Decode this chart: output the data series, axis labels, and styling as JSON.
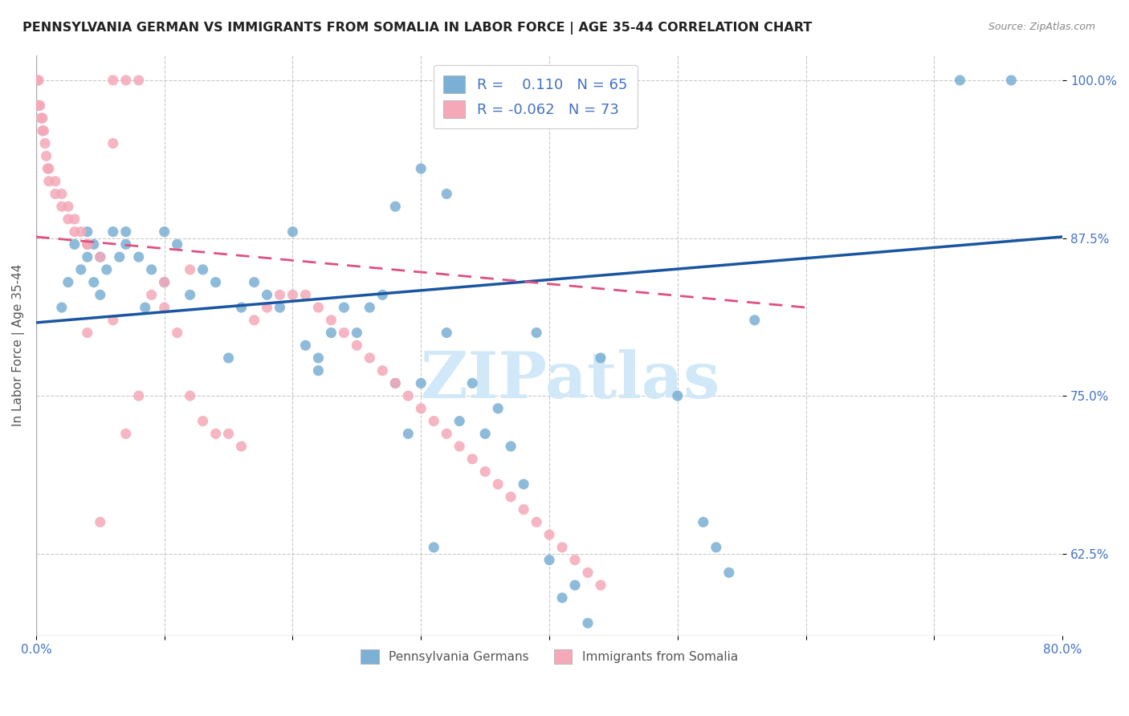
{
  "title": "PENNSYLVANIA GERMAN VS IMMIGRANTS FROM SOMALIA IN LABOR FORCE | AGE 35-44 CORRELATION CHART",
  "source": "Source: ZipAtlas.com",
  "ylabel": "In Labor Force | Age 35-44",
  "xlim": [
    0.0,
    0.8
  ],
  "ylim": [
    0.56,
    1.02
  ],
  "ytick_positions": [
    0.625,
    0.75,
    0.875,
    1.0
  ],
  "yticklabels": [
    "62.5%",
    "75.0%",
    "87.5%",
    "100.0%"
  ],
  "xtick_positions": [
    0.0,
    0.1,
    0.2,
    0.3,
    0.4,
    0.5,
    0.6,
    0.7,
    0.8
  ],
  "xticklabels": [
    "0.0%",
    "",
    "",
    "",
    "",
    "",
    "",
    "",
    "80.0%"
  ],
  "blue_color": "#7bafd4",
  "pink_color": "#f4a8b8",
  "blue_line_color": "#1a56a0",
  "pink_line_color": "#e05080",
  "legend_R_blue": " 0.110",
  "legend_N_blue": "65",
  "legend_R_pink": "-0.062",
  "legend_N_pink": "73",
  "watermark": "ZIPatlas",
  "watermark_color": "#d0e8f8",
  "title_color": "#222222",
  "axis_color": "#4472c4",
  "grid_color": "#bbbbbb",
  "blue_scatter_x": [
    0.02,
    0.025,
    0.03,
    0.035,
    0.04,
    0.04,
    0.045,
    0.045,
    0.05,
    0.05,
    0.055,
    0.06,
    0.065,
    0.07,
    0.07,
    0.08,
    0.085,
    0.09,
    0.1,
    0.1,
    0.11,
    0.12,
    0.13,
    0.14,
    0.15,
    0.16,
    0.17,
    0.18,
    0.19,
    0.2,
    0.21,
    0.22,
    0.22,
    0.23,
    0.24,
    0.25,
    0.26,
    0.27,
    0.28,
    0.29,
    0.3,
    0.31,
    0.32,
    0.33,
    0.34,
    0.35,
    0.36,
    0.37,
    0.38,
    0.39,
    0.4,
    0.41,
    0.42,
    0.43,
    0.44,
    0.5,
    0.52,
    0.53,
    0.54,
    0.56,
    0.72,
    0.76,
    0.3,
    0.32,
    0.28
  ],
  "blue_scatter_y": [
    0.82,
    0.84,
    0.87,
    0.85,
    0.88,
    0.86,
    0.87,
    0.84,
    0.86,
    0.83,
    0.85,
    0.88,
    0.86,
    0.88,
    0.87,
    0.86,
    0.82,
    0.85,
    0.88,
    0.84,
    0.87,
    0.83,
    0.85,
    0.84,
    0.78,
    0.82,
    0.84,
    0.83,
    0.82,
    0.88,
    0.79,
    0.77,
    0.78,
    0.8,
    0.82,
    0.8,
    0.82,
    0.83,
    0.76,
    0.72,
    0.76,
    0.63,
    0.8,
    0.73,
    0.76,
    0.72,
    0.74,
    0.71,
    0.68,
    0.8,
    0.62,
    0.59,
    0.6,
    0.57,
    0.78,
    0.75,
    0.65,
    0.63,
    0.61,
    0.81,
    1.0,
    1.0,
    0.93,
    0.91,
    0.9
  ],
  "pink_scatter_x": [
    0.001,
    0.001,
    0.002,
    0.002,
    0.003,
    0.004,
    0.005,
    0.005,
    0.006,
    0.007,
    0.008,
    0.009,
    0.01,
    0.01,
    0.015,
    0.015,
    0.02,
    0.02,
    0.025,
    0.025,
    0.03,
    0.03,
    0.035,
    0.04,
    0.04,
    0.05,
    0.06,
    0.06,
    0.07,
    0.08,
    0.09,
    0.1,
    0.11,
    0.12,
    0.13,
    0.14,
    0.15,
    0.16,
    0.17,
    0.18,
    0.19,
    0.2,
    0.21,
    0.22,
    0.23,
    0.24,
    0.25,
    0.26,
    0.27,
    0.28,
    0.29,
    0.3,
    0.31,
    0.32,
    0.33,
    0.34,
    0.35,
    0.36,
    0.37,
    0.38,
    0.39,
    0.4,
    0.41,
    0.42,
    0.43,
    0.44,
    0.1,
    0.12,
    0.08,
    0.07,
    0.06,
    0.05,
    0.04
  ],
  "pink_scatter_y": [
    0.98,
    1.0,
    0.98,
    1.0,
    0.98,
    0.97,
    0.97,
    0.96,
    0.96,
    0.95,
    0.94,
    0.93,
    0.93,
    0.92,
    0.92,
    0.91,
    0.91,
    0.9,
    0.9,
    0.89,
    0.89,
    0.88,
    0.88,
    0.87,
    0.87,
    0.86,
    0.95,
    1.0,
    1.0,
    1.0,
    0.83,
    0.82,
    0.8,
    0.75,
    0.73,
    0.72,
    0.72,
    0.71,
    0.81,
    0.82,
    0.83,
    0.83,
    0.83,
    0.82,
    0.81,
    0.8,
    0.79,
    0.78,
    0.77,
    0.76,
    0.75,
    0.74,
    0.73,
    0.72,
    0.71,
    0.7,
    0.69,
    0.68,
    0.67,
    0.66,
    0.65,
    0.64,
    0.63,
    0.62,
    0.61,
    0.6,
    0.84,
    0.85,
    0.75,
    0.72,
    0.81,
    0.65,
    0.8
  ],
  "blue_trend_x": [
    0.0,
    0.8
  ],
  "blue_trend_y": [
    0.808,
    0.876
  ],
  "pink_trend_x": [
    0.0,
    0.6
  ],
  "pink_trend_y": [
    0.876,
    0.82
  ]
}
